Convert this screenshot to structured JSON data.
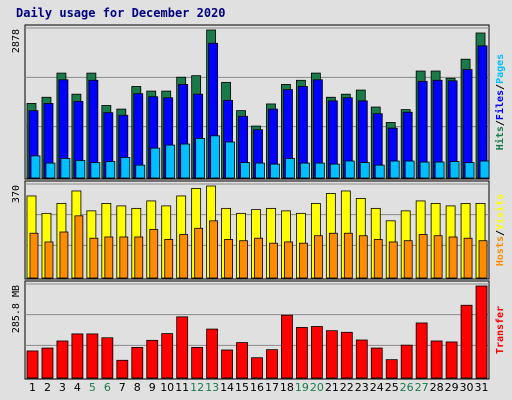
{
  "chart_data": {
    "title": "Daily usage for December 2020",
    "type": "bar",
    "categories": [
      "1",
      "2",
      "3",
      "4",
      "5",
      "6",
      "7",
      "8",
      "9",
      "10",
      "11",
      "12",
      "13",
      "14",
      "15",
      "16",
      "17",
      "18",
      "19",
      "20",
      "21",
      "22",
      "23",
      "24",
      "25",
      "26",
      "27",
      "28",
      "29",
      "30",
      "31"
    ],
    "weekend_days": [
      "5",
      "6",
      "12",
      "13",
      "19",
      "20",
      "26",
      "27"
    ],
    "panels": [
      {
        "id": "pages-files-hits",
        "ymax_label": "2878",
        "ymax": 2878,
        "side_label": [
          "Hits",
          "/",
          "Files",
          "/",
          "Pages"
        ],
        "series": [
          {
            "name": "Hits",
            "color": "#1a7a4a",
            "values": [
              1450,
              1570,
              2040,
              1630,
              2040,
              1410,
              1340,
              1780,
              1690,
              1690,
              1960,
              1990,
              2878,
              1860,
              1310,
              1010,
              1440,
              1820,
              1900,
              2040,
              1570,
              1630,
              1710,
              1380,
              1080,
              1330,
              2080,
              2080,
              1940,
              2310,
              2820
            ]
          },
          {
            "name": "Files",
            "color": "#0000ff",
            "values": [
              1310,
              1450,
              1910,
              1490,
              1900,
              1270,
              1220,
              1640,
              1580,
              1560,
              1820,
              1630,
              2620,
              1510,
              1200,
              940,
              1340,
              1720,
              1780,
              1910,
              1500,
              1560,
              1500,
              1250,
              970,
              1280,
              1880,
              1900,
              1890,
              2110,
              2570
            ]
          },
          {
            "name": "Pages",
            "color": "#00bfff",
            "values": [
              430,
              290,
              380,
              340,
              300,
              320,
              400,
              250,
              580,
              640,
              660,
              770,
              820,
              700,
              300,
              290,
              270,
              380,
              290,
              290,
              270,
              330,
              300,
              250,
              330,
              330,
              310,
              310,
              320,
              300,
              330
            ]
          }
        ]
      },
      {
        "id": "visits-hosts",
        "ymax_label": "370",
        "ymax": 370,
        "side_label": [
          "Hosts",
          "/",
          "Visits"
        ],
        "series": [
          {
            "name": "Visits",
            "color": "#ffff00",
            "values": [
              330,
              260,
              300,
              350,
              270,
              300,
              290,
              280,
              310,
              290,
              330,
              360,
              370,
              280,
              260,
              275,
              280,
              270,
              260,
              300,
              340,
              350,
              320,
              280,
              230,
              270,
              310,
              300,
              290,
              300,
              300
            ]
          },
          {
            "name": "Hosts",
            "color": "#ff8c00",
            "values": [
              180,
              145,
              185,
              250,
              160,
              165,
              165,
              165,
              195,
              155,
              175,
              200,
              230,
              155,
              150,
              160,
              140,
              145,
              140,
              170,
              180,
              180,
              170,
              155,
              145,
              150,
              175,
              170,
              165,
              160,
              150
            ]
          }
        ]
      },
      {
        "id": "transfer",
        "ymax_label": "285.8 MB",
        "ymax": 285.8,
        "side_label": [
          "Transfer"
        ],
        "series": [
          {
            "name": "Transfer",
            "color": "#ff0000",
            "values": [
              84,
              93,
              115,
              137,
              137,
              125,
              55,
              95,
              117,
              138,
              190,
              95,
              152,
              87,
              110,
              63,
              88,
              195,
              157,
              160,
              147,
              142,
              118,
              93,
              57,
              102,
              171,
              115,
              112,
              226,
              285.8
            ]
          }
        ]
      }
    ]
  }
}
